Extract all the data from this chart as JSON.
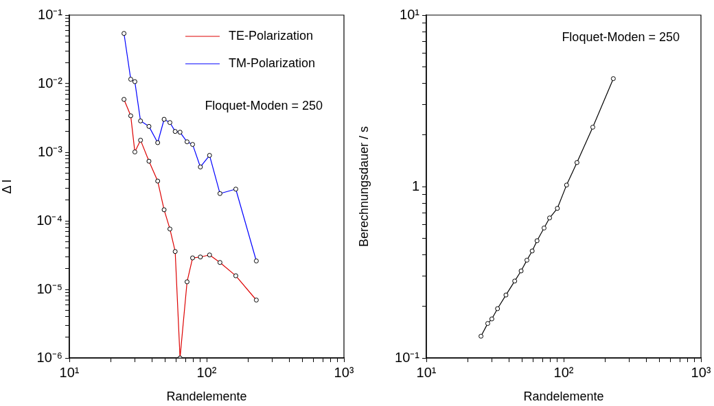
{
  "chart_data": [
    {
      "type": "line",
      "xlabel": "Randelemente",
      "ylabel": "Δ I",
      "log": "xy",
      "marker": "circle",
      "legend": "top right",
      "grid": false,
      "x": [
        25,
        28,
        30,
        33,
        38,
        44,
        49,
        54,
        59,
        64,
        72,
        79,
        90,
        105,
        125,
        163,
        230
      ],
      "series": [
        {
          "name": "TE-Polarization",
          "color": "#dd0000",
          "values": [
            0.0059,
            0.0034,
            0.00101,
            0.0015,
            0.00074,
            0.00038,
            0.000145,
            7.6e-05,
            3.57e-05,
            1e-06,
            1.29e-05,
            2.88e-05,
            2.97e-05,
            3.18e-05,
            2.47e-05,
            1.58e-05,
            7e-06
          ]
        },
        {
          "name": "TM-Polarization",
          "color": "#0000ff",
          "values": [
            0.054,
            0.0116,
            0.0107,
            0.00286,
            0.00238,
            0.00138,
            0.00302,
            0.00271,
            0.00201,
            0.00196,
            0.00142,
            0.0013,
            0.00061,
            0.0009,
            0.00025,
            0.00029,
            2.6e-05
          ]
        }
      ],
      "xlim": [
        10,
        1000
      ],
      "ylim": [
        1e-06,
        0.1
      ],
      "xticks": [
        {
          "value": 10,
          "label": "10¹"
        },
        {
          "value": 20,
          "label": null
        },
        {
          "value": 30,
          "label": null
        },
        {
          "value": 40,
          "label": null
        },
        {
          "value": 50,
          "label": null
        },
        {
          "value": 60,
          "label": null
        },
        {
          "value": 70,
          "label": null
        },
        {
          "value": 80,
          "label": null
        },
        {
          "value": 90,
          "label": null
        },
        {
          "value": 100,
          "label": "10²"
        },
        {
          "value": 200,
          "label": null
        },
        {
          "value": 300,
          "label": null
        },
        {
          "value": 400,
          "label": null
        },
        {
          "value": 500,
          "label": null
        },
        {
          "value": 600,
          "label": null
        },
        {
          "value": 700,
          "label": null
        },
        {
          "value": 800,
          "label": null
        },
        {
          "value": 900,
          "label": null
        },
        {
          "value": 1000,
          "label": "10³"
        }
      ],
      "yticks": [
        {
          "value": 1e-06,
          "label": "10⁻⁶"
        },
        {
          "value": 2e-06,
          "label": null
        },
        {
          "value": 3e-06,
          "label": null
        },
        {
          "value": 4e-06,
          "label": null
        },
        {
          "value": 5e-06,
          "label": null
        },
        {
          "value": 6e-06,
          "label": null
        },
        {
          "value": 7e-06,
          "label": null
        },
        {
          "value": 8e-06,
          "label": null
        },
        {
          "value": 9e-06,
          "label": null
        },
        {
          "value": 1e-05,
          "label": "10⁻⁵"
        },
        {
          "value": 2e-05,
          "label": null
        },
        {
          "value": 3e-05,
          "label": null
        },
        {
          "value": 4e-05,
          "label": null
        },
        {
          "value": 5e-05,
          "label": null
        },
        {
          "value": 6e-05,
          "label": null
        },
        {
          "value": 7e-05,
          "label": null
        },
        {
          "value": 8e-05,
          "label": null
        },
        {
          "value": 9e-05,
          "label": null
        },
        {
          "value": 0.0001,
          "label": "10⁻⁴"
        },
        {
          "value": 0.0002,
          "label": null
        },
        {
          "value": 0.0003,
          "label": null
        },
        {
          "value": 0.0004,
          "label": null
        },
        {
          "value": 0.0005,
          "label": null
        },
        {
          "value": 0.0006,
          "label": null
        },
        {
          "value": 0.0007,
          "label": null
        },
        {
          "value": 0.0008,
          "label": null
        },
        {
          "value": 0.0009,
          "label": null
        },
        {
          "value": 0.001,
          "label": "10⁻³"
        },
        {
          "value": 0.002,
          "label": null
        },
        {
          "value": 0.003,
          "label": null
        },
        {
          "value": 0.004,
          "label": null
        },
        {
          "value": 0.005,
          "label": null
        },
        {
          "value": 0.006,
          "label": null
        },
        {
          "value": 0.007,
          "label": null
        },
        {
          "value": 0.008,
          "label": null
        },
        {
          "value": 0.009,
          "label": null
        },
        {
          "value": 0.01,
          "label": "10⁻²"
        },
        {
          "value": 0.02,
          "label": null
        },
        {
          "value": 0.03,
          "label": null
        },
        {
          "value": 0.04,
          "label": null
        },
        {
          "value": 0.05,
          "label": null
        },
        {
          "value": 0.06,
          "label": null
        },
        {
          "value": 0.07,
          "label": null
        },
        {
          "value": 0.08,
          "label": null
        },
        {
          "value": 0.09,
          "label": null
        },
        {
          "value": 0.1,
          "label": "10⁻¹"
        }
      ],
      "annotations": [
        "Floquet-Moden = 250"
      ]
    },
    {
      "type": "line",
      "xlabel": "Randelemente",
      "ylabel": "Berechnungsdauer / s",
      "log": "xy",
      "marker": "circle",
      "grid": false,
      "x": [
        25,
        28,
        30,
        33,
        38,
        44,
        49,
        54,
        59,
        64,
        72,
        79,
        90,
        105,
        125,
        163,
        230
      ],
      "series": [
        {
          "color": "#000000",
          "values": [
            0.134,
            0.159,
            0.169,
            0.194,
            0.233,
            0.281,
            0.322,
            0.372,
            0.421,
            0.483,
            0.573,
            0.656,
            0.746,
            1.02,
            1.38,
            2.22,
            4.26
          ]
        }
      ],
      "xlim": [
        10,
        1000
      ],
      "ylim": [
        0.1,
        10
      ],
      "xticks": [
        {
          "value": 10,
          "label": "10¹"
        },
        {
          "value": 20,
          "label": null
        },
        {
          "value": 30,
          "label": null
        },
        {
          "value": 40,
          "label": null
        },
        {
          "value": 50,
          "label": null
        },
        {
          "value": 60,
          "label": null
        },
        {
          "value": 70,
          "label": null
        },
        {
          "value": 80,
          "label": null
        },
        {
          "value": 90,
          "label": null
        },
        {
          "value": 100,
          "label": "10²"
        },
        {
          "value": 200,
          "label": null
        },
        {
          "value": 300,
          "label": null
        },
        {
          "value": 400,
          "label": null
        },
        {
          "value": 500,
          "label": null
        },
        {
          "value": 600,
          "label": null
        },
        {
          "value": 700,
          "label": null
        },
        {
          "value": 800,
          "label": null
        },
        {
          "value": 900,
          "label": null
        },
        {
          "value": 1000,
          "label": "10³"
        }
      ],
      "yticks": [
        {
          "value": 0.1,
          "label": "10⁻¹"
        },
        {
          "value": 0.2,
          "label": null
        },
        {
          "value": 0.3,
          "label": null
        },
        {
          "value": 0.4,
          "label": null
        },
        {
          "value": 0.5,
          "label": null
        },
        {
          "value": 0.6,
          "label": null
        },
        {
          "value": 0.7,
          "label": null
        },
        {
          "value": 0.8,
          "label": null
        },
        {
          "value": 0.9,
          "label": null
        },
        1,
        {
          "value": 2,
          "label": null
        },
        {
          "value": 3,
          "label": null
        },
        {
          "value": 4,
          "label": null
        },
        {
          "value": 5,
          "label": null
        },
        {
          "value": 6,
          "label": null
        },
        {
          "value": 7,
          "label": null
        },
        {
          "value": 8,
          "label": null
        },
        {
          "value": 9,
          "label": null
        },
        {
          "value": 10,
          "label": "10¹"
        }
      ],
      "annotations": [
        "Floquet-Moden = 250"
      ]
    }
  ]
}
